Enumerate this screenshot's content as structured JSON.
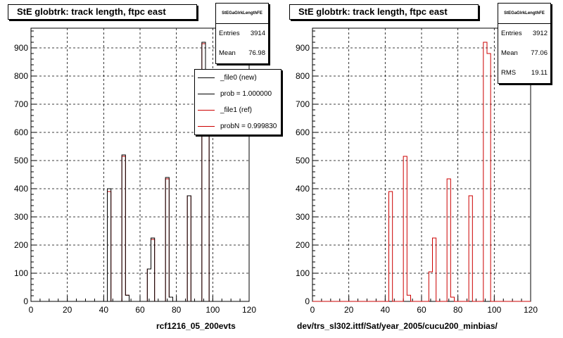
{
  "chart_data": [
    {
      "type": "bar",
      "title": "StE globtrk: track length, ftpc east",
      "xlabel": "rcf1216_05_200evts",
      "xlim": [
        0,
        120
      ],
      "ylim": [
        0,
        970
      ],
      "xticks": [
        0,
        20,
        40,
        60,
        80,
        100,
        120
      ],
      "yticks": [
        0,
        100,
        200,
        300,
        400,
        500,
        600,
        700,
        800,
        900
      ],
      "grid": true,
      "bin_width": 2,
      "bin_edges_start": 0,
      "series": [
        {
          "name": "_file0 (new)",
          "color": "#000000",
          "values": [
            0,
            0,
            0,
            0,
            0,
            0,
            0,
            0,
            0,
            0,
            0,
            0,
            0,
            0,
            0,
            0,
            0,
            0,
            0,
            0,
            0,
            400,
            0,
            0,
            0,
            520,
            22,
            0,
            0,
            0,
            0,
            0,
            115,
            225,
            0,
            0,
            0,
            440,
            15,
            0,
            0,
            0,
            0,
            375,
            0,
            0,
            0,
            920,
            735,
            0,
            0,
            0,
            0,
            0,
            0,
            0,
            0,
            0,
            0,
            0
          ]
        },
        {
          "name": "_file1 (ref)",
          "color": "#cc0000",
          "values": [
            0,
            0,
            0,
            0,
            0,
            0,
            0,
            0,
            0,
            0,
            0,
            0,
            0,
            0,
            0,
            0,
            0,
            0,
            0,
            0,
            0,
            390,
            0,
            0,
            0,
            515,
            22,
            0,
            0,
            0,
            0,
            0,
            115,
            220,
            0,
            0,
            0,
            435,
            15,
            0,
            0,
            0,
            0,
            375,
            0,
            0,
            0,
            915,
            735,
            0,
            0,
            0,
            0,
            0,
            0,
            0,
            0,
            0,
            0,
            0
          ]
        }
      ],
      "stats": {
        "name": "StEGaGlrkLengthFE",
        "entries_label": "Entries",
        "entries": "3914",
        "mean_label": "Mean",
        "mean": "76.98"
      },
      "legend": {
        "placement": "top-right",
        "entries": [
          {
            "label": "_file0 (new)",
            "color": "#000000"
          },
          {
            "label": "prob = 1.000000",
            "color": "#000000"
          },
          {
            "label": "_file1 (ref)",
            "color": "#cc0000"
          },
          {
            "label": "probN = 0.999830",
            "color": "#cc0000"
          }
        ]
      }
    },
    {
      "type": "bar",
      "title": "StE globtrk: track length, ftpc east",
      "xlabel": "dev/trs_sl302.ittf/Sat/year_2005/cucu200_minbias/",
      "xlim": [
        0,
        120
      ],
      "ylim": [
        0,
        970
      ],
      "xticks": [
        0,
        20,
        40,
        60,
        80,
        100,
        120
      ],
      "yticks": [
        0,
        100,
        200,
        300,
        400,
        500,
        600,
        700,
        800,
        900
      ],
      "grid": true,
      "bin_width": 2,
      "bin_edges_start": 0,
      "series": [
        {
          "color": "#cc0000",
          "values": [
            0,
            0,
            0,
            0,
            0,
            0,
            0,
            0,
            0,
            0,
            0,
            0,
            0,
            0,
            0,
            0,
            0,
            0,
            0,
            0,
            0,
            390,
            0,
            0,
            0,
            515,
            22,
            0,
            0,
            0,
            0,
            0,
            105,
            225,
            0,
            0,
            0,
            435,
            15,
            0,
            0,
            0,
            0,
            375,
            0,
            0,
            0,
            920,
            880,
            0,
            0,
            0,
            0,
            0,
            0,
            0,
            0,
            0,
            0,
            0
          ]
        }
      ],
      "stats": {
        "name": "StEGaGlrkLengthFE",
        "entries_label": "Entries",
        "entries": "3912",
        "mean_label": "Mean",
        "mean": "77.06",
        "rms_label": "RMS",
        "rms": "19.11"
      }
    }
  ]
}
